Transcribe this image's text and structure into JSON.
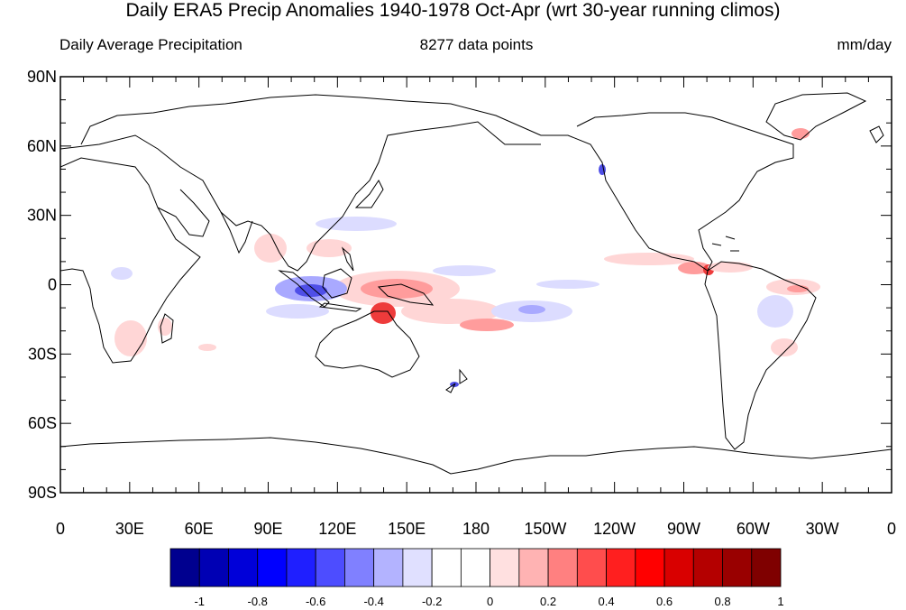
{
  "title": "Daily ERA5 Precip Anomalies 1940-1978 Oct-Apr (wrt 30-year running climos)",
  "subtitle_left": "Daily Average Precipitation",
  "subtitle_center": "8277 data points",
  "subtitle_right": "mm/day",
  "lat_labels": [
    "90N",
    "60N",
    "30N",
    "0",
    "30S",
    "60S",
    "90S"
  ],
  "lon_labels": [
    "0",
    "30E",
    "60E",
    "90E",
    "120E",
    "150E",
    "180",
    "150W",
    "120W",
    "90W",
    "60W",
    "30W",
    "0"
  ],
  "colorbar": {
    "colors": [
      "#00008f",
      "#0000b4",
      "#0000d9",
      "#0000ff",
      "#1f1fff",
      "#4d4dff",
      "#8080ff",
      "#b3b3ff",
      "#e0e0ff",
      "#ffffff",
      "#ffffff",
      "#ffe0e0",
      "#ffb3b3",
      "#ff8080",
      "#ff4d4d",
      "#ff1f1f",
      "#ff0000",
      "#d90000",
      "#b40000",
      "#990000",
      "#7f0000"
    ],
    "labels": [
      "-1",
      "-0.8",
      "-0.6",
      "-0.4",
      "-0.2",
      "0",
      "0.2",
      "0.4",
      "0.6",
      "0.8",
      "1"
    ]
  },
  "anomaly_colors": {
    "pos_light": "#ffd6d6",
    "pos_mid": "#ff9c9c",
    "pos_strong": "#ee3b3b",
    "neg_light": "#dcdcff",
    "neg_mid": "#a9a9ff",
    "neg_strong": "#4f4fe8"
  }
}
